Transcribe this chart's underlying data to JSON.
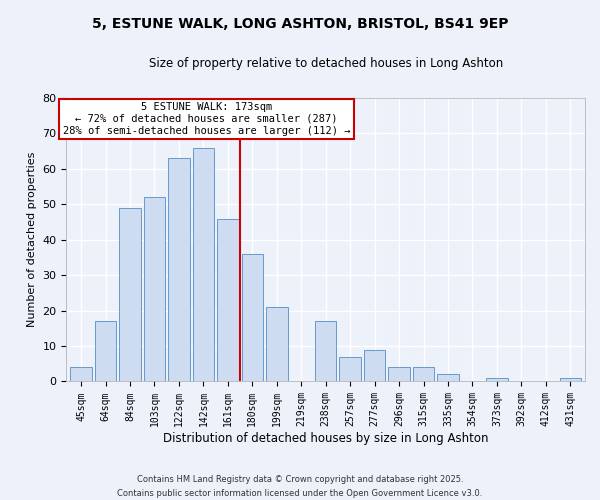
{
  "title": "5, ESTUNE WALK, LONG ASHTON, BRISTOL, BS41 9EP",
  "subtitle": "Size of property relative to detached houses in Long Ashton",
  "xlabel": "Distribution of detached houses by size in Long Ashton",
  "ylabel": "Number of detached properties",
  "bar_labels": [
    "45sqm",
    "64sqm",
    "84sqm",
    "103sqm",
    "122sqm",
    "142sqm",
    "161sqm",
    "180sqm",
    "199sqm",
    "219sqm",
    "238sqm",
    "257sqm",
    "277sqm",
    "296sqm",
    "315sqm",
    "335sqm",
    "354sqm",
    "373sqm",
    "392sqm",
    "412sqm",
    "431sqm"
  ],
  "bar_values": [
    4,
    17,
    49,
    52,
    63,
    66,
    46,
    36,
    21,
    0,
    17,
    7,
    9,
    4,
    4,
    2,
    0,
    1,
    0,
    0,
    1
  ],
  "bar_color": "#cddcf0",
  "bar_edge_color": "#6699cc",
  "vline_x": 6.5,
  "vline_color": "#cc0000",
  "annotation_title": "5 ESTUNE WALK: 173sqm",
  "annotation_line1": "← 72% of detached houses are smaller (287)",
  "annotation_line2": "28% of semi-detached houses are larger (112) →",
  "annotation_box_color": "#ffffff",
  "annotation_box_edge": "#cc0000",
  "ylim": [
    0,
    80
  ],
  "yticks": [
    0,
    10,
    20,
    30,
    40,
    50,
    60,
    70,
    80
  ],
  "background_color": "#edf1fa",
  "grid_color": "#ffffff",
  "footer1": "Contains HM Land Registry data © Crown copyright and database right 2025.",
  "footer2": "Contains public sector information licensed under the Open Government Licence v3.0."
}
